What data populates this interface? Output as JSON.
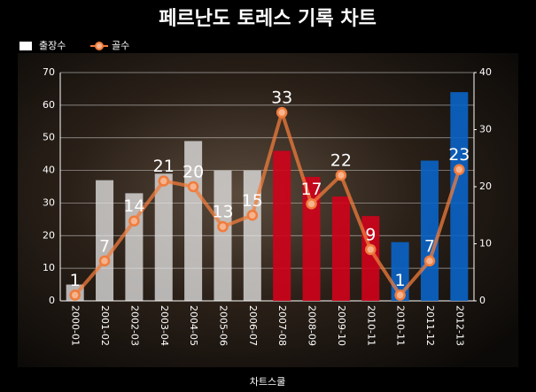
{
  "chart_data": {
    "type": "bar_line",
    "title": "페르난도 토레스 기록 차트",
    "footer": "차트스쿨",
    "categories": [
      "2000-01",
      "2001-02",
      "2002-03",
      "2003-04",
      "2004-05",
      "2005-06",
      "2006-07",
      "2007-08",
      "2008-09",
      "2009-10",
      "2010-11",
      "2010-11",
      "2011-12",
      "2012-13"
    ],
    "series": [
      {
        "name": "출장수",
        "color": "#ffffff",
        "type": "bar",
        "bar_colors": [
          "#e8e8e8",
          "#e8e8e8",
          "#e8e8e8",
          "#e8e8e8",
          "#e8e8e8",
          "#e8e8e8",
          "#e8e8e8",
          "#d0021b",
          "#d0021b",
          "#d0021b",
          "#d0021b",
          "#0a64c8",
          "#0a64c8",
          "#0a64c8"
        ],
        "values": [
          5,
          37,
          33,
          39,
          49,
          40,
          40,
          46,
          38,
          32,
          26,
          18,
          43,
          64
        ]
      },
      {
        "name": "골수",
        "color": "#f07c3c",
        "type": "line",
        "axis": "y2",
        "values": [
          1,
          7,
          14,
          21,
          20,
          13,
          15,
          33,
          17,
          22,
          9,
          1,
          7,
          23
        ]
      }
    ],
    "ylim": [
      0,
      70
    ],
    "yticks": [
      0,
      10,
      20,
      30,
      40,
      50,
      60,
      70
    ],
    "y2lim": [
      0,
      40
    ],
    "y2ticks": [
      0,
      10,
      20,
      30,
      40
    ],
    "grid": true
  }
}
